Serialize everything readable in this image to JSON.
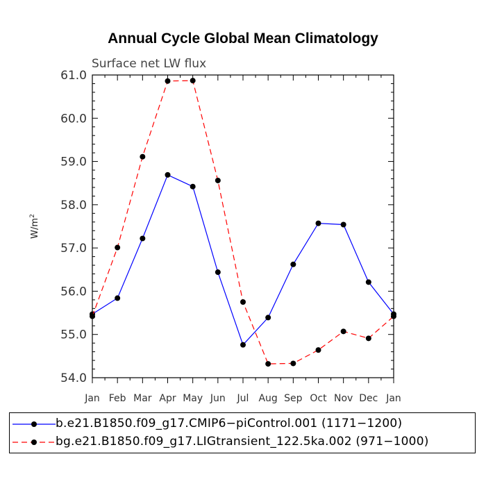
{
  "chart_data": {
    "type": "line",
    "title": "Annual Cycle Global Mean Climatology",
    "subtitle": "Surface net LW flux",
    "ylabel": "W/m",
    "ylabel_superscript": "2",
    "xlabel": "",
    "categories": [
      "Jan",
      "Feb",
      "Mar",
      "Apr",
      "May",
      "Jun",
      "Jul",
      "Aug",
      "Sep",
      "Oct",
      "Nov",
      "Dec",
      "Jan"
    ],
    "ylim": [
      54.0,
      61.0
    ],
    "yticks": [
      "54.0",
      "55.0",
      "56.0",
      "57.0",
      "58.0",
      "59.0",
      "60.0",
      "61.0"
    ],
    "grid": false,
    "legend_position": "bottom",
    "series": [
      {
        "name": "b.e21.B1850.f09_g17.CMIP6−piControl.001 (1171−1200)",
        "color": "#0000ff",
        "line_style": "solid",
        "values": [
          55.47,
          55.84,
          57.22,
          58.69,
          58.42,
          56.44,
          54.76,
          55.39,
          56.62,
          57.57,
          57.54,
          56.21,
          55.47
        ]
      },
      {
        "name": "bg.e21.B1850.f09_g17.LIGtransient_122.5ka.002 (971−1000)",
        "color": "#ff0000",
        "line_style": "dashed",
        "values": [
          55.42,
          57.01,
          59.11,
          60.86,
          60.87,
          58.56,
          55.75,
          54.32,
          54.33,
          54.64,
          55.07,
          54.91,
          55.42
        ]
      }
    ]
  }
}
